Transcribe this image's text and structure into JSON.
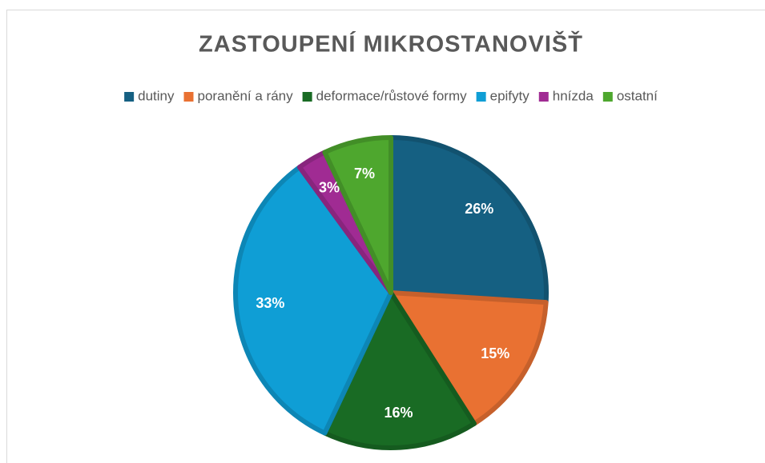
{
  "chart_data": {
    "type": "pie",
    "title": "ZASTOUPENÍ MIKROSTANOVIŠŤ",
    "categories": [
      "dutiny",
      "poranění a rány",
      "deformace/růstové formy",
      "epifyty",
      "hnízda",
      "ostatní"
    ],
    "values": [
      26,
      15,
      16,
      33,
      3,
      7
    ],
    "value_labels": [
      "26%",
      "15%",
      "16%",
      "33%",
      "3%",
      "7%"
    ],
    "colors": [
      "#156082",
      "#e97132",
      "#196b24",
      "#0f9ed5",
      "#a02b93",
      "#4ea72e"
    ],
    "legend": "top"
  }
}
